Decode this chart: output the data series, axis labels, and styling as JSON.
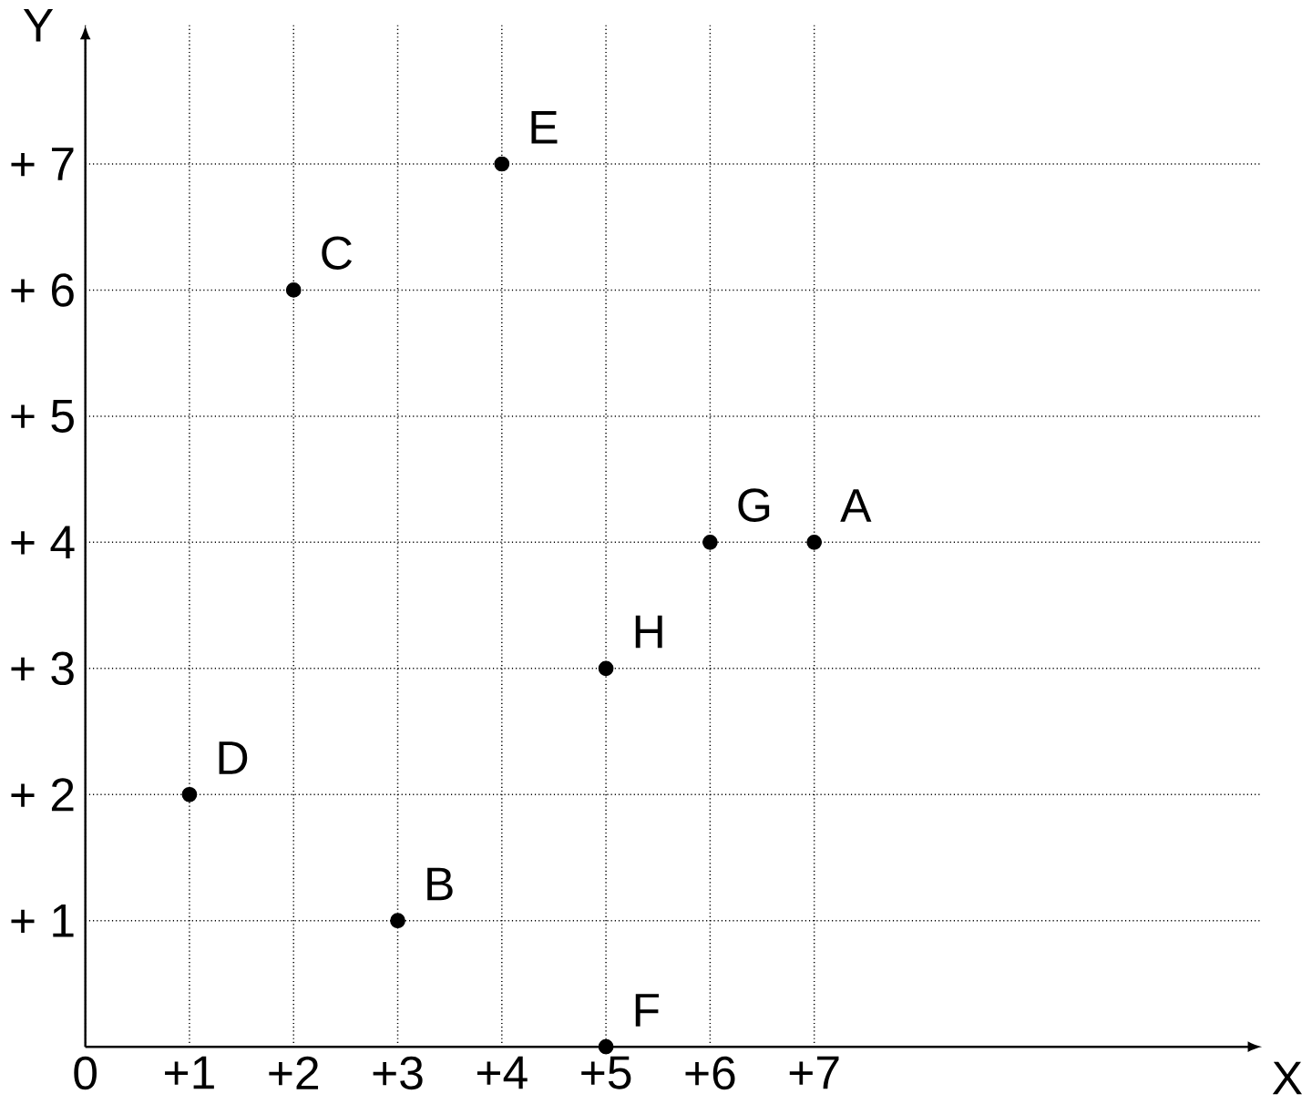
{
  "chart_data": {
    "type": "scatter",
    "xlabel": "X",
    "ylabel": "Y",
    "x": [
      7,
      3,
      2,
      1,
      4,
      5,
      6,
      5
    ],
    "values": [
      4,
      1,
      6,
      2,
      7,
      0,
      4,
      3
    ],
    "color": "#000000",
    "grid": true,
    "xlim": [
      0,
      11.3
    ],
    "ylim": [
      0,
      8.1
    ],
    "xticks": [
      {
        "value": 0,
        "label": "0"
      },
      {
        "value": 1,
        "label": "+1"
      },
      {
        "value": 2,
        "label": "+2"
      },
      {
        "value": 3,
        "label": "+3"
      },
      {
        "value": 4,
        "label": "+4"
      },
      {
        "value": 5,
        "label": "+5"
      },
      {
        "value": 6,
        "label": "+6"
      },
      {
        "value": 7,
        "label": "+7"
      }
    ],
    "yticks": [
      {
        "value": 1,
        "label": "+ 1"
      },
      {
        "value": 2,
        "label": "+ 2"
      },
      {
        "value": 3,
        "label": "+ 3"
      },
      {
        "value": 4,
        "label": "+ 4"
      },
      {
        "value": 5,
        "label": "+ 5"
      },
      {
        "value": 6,
        "label": "+ 6"
      },
      {
        "value": 7,
        "label": "+ 7"
      }
    ],
    "annotations": [
      {
        "text": "A",
        "x": 7,
        "y": 4
      },
      {
        "text": "B",
        "x": 3,
        "y": 1
      },
      {
        "text": "C",
        "x": 2,
        "y": 6
      },
      {
        "text": "D",
        "x": 1,
        "y": 2
      },
      {
        "text": "E",
        "x": 4,
        "y": 7
      },
      {
        "text": "F",
        "x": 5,
        "y": 0
      },
      {
        "text": "G",
        "x": 6,
        "y": 4
      },
      {
        "text": "H",
        "x": 5,
        "y": 3
      }
    ]
  }
}
